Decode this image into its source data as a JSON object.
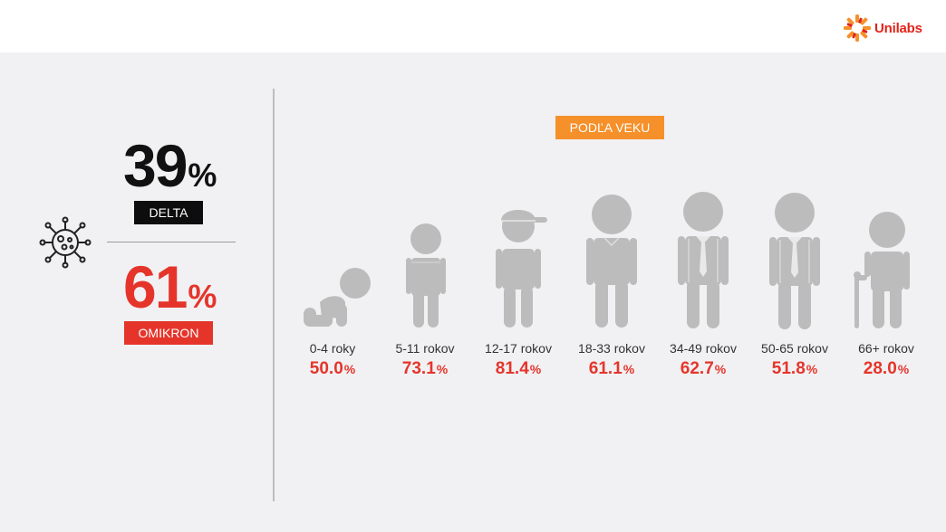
{
  "brand": {
    "name": "Unilabs",
    "color": "#e2231a",
    "accent": "#f5902a"
  },
  "summary": {
    "delta": {
      "value": "39",
      "unit": "%",
      "label": "DELTA"
    },
    "omikron": {
      "value": "61",
      "unit": "%",
      "label": "OMIKRON"
    },
    "icon": "virus-icon"
  },
  "age_section": {
    "title": "PODĽA VEKU",
    "groups": [
      {
        "label": "0-4 roky",
        "value": "50.0",
        "unit": "%",
        "icon": "crawling-baby-icon"
      },
      {
        "label": "5-11 rokov",
        "value": "73.1",
        "unit": "%",
        "icon": "child-icon"
      },
      {
        "label": "12-17 rokov",
        "value": "81.4",
        "unit": "%",
        "icon": "teen-with-cap-icon"
      },
      {
        "label": "18-33 rokov",
        "value": "61.1",
        "unit": "%",
        "icon": "young-adult-icon"
      },
      {
        "label": "34-49 rokov",
        "value": "62.7",
        "unit": "%",
        "icon": "adult-with-tie-icon"
      },
      {
        "label": "50-65 rokov",
        "value": "51.8",
        "unit": "%",
        "icon": "adult-with-tie-icon"
      },
      {
        "label": "66+ rokov",
        "value": "28.0",
        "unit": "%",
        "icon": "elderly-with-cane-icon"
      }
    ]
  },
  "colors": {
    "red": "#e5352b",
    "figure": "#bcbcbc",
    "background": "#f1f1f3"
  }
}
